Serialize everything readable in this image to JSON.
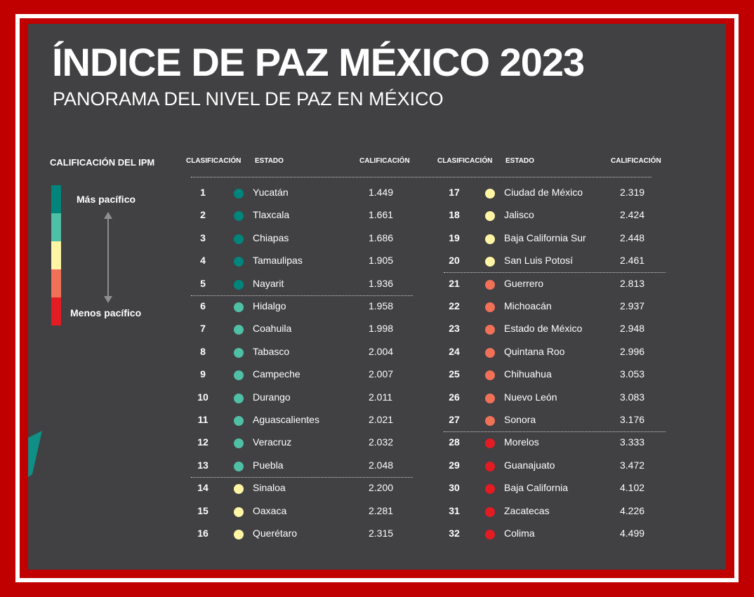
{
  "header": {
    "title": "ÍNDICE DE PAZ MÉXICO 2023",
    "subtitle": "PANORAMA DEL NIVEL DE PAZ EN MÉXICO"
  },
  "legend": {
    "title": "CALIFICACIÓN DEL IPM",
    "most": "Más pacífico",
    "least": "Menos pacífico",
    "colors": [
      "#00857c",
      "#4fbfa5",
      "#fff5a5",
      "#f07158",
      "#e31c23"
    ]
  },
  "columns": {
    "rank": "CLASIFICACIÓN",
    "state": "ESTADO",
    "score": "CALIFICACIÓN"
  },
  "chart_data": {
    "type": "table",
    "title": "ÍNDICE DE PAZ MÉXICO 2023",
    "subtitle": "PANORAMA DEL NIVEL DE PAZ EN MÉXICO",
    "columns": [
      "CLASIFICACIÓN",
      "ESTADO",
      "CALIFICACIÓN"
    ],
    "rows": [
      {
        "rank": "1",
        "state": "Yucatán",
        "score": "1.449",
        "color": "#00857c"
      },
      {
        "rank": "2",
        "state": "Tlaxcala",
        "score": "1.661",
        "color": "#00857c"
      },
      {
        "rank": "3",
        "state": "Chiapas",
        "score": "1.686",
        "color": "#00857c"
      },
      {
        "rank": "4",
        "state": "Tamaulipas",
        "score": "1.905",
        "color": "#00857c"
      },
      {
        "rank": "5",
        "state": "Nayarit",
        "score": "1.936",
        "color": "#00857c"
      },
      {
        "rank": "6",
        "state": "Hidalgo",
        "score": "1.958",
        "color": "#4fbfa5"
      },
      {
        "rank": "7",
        "state": "Coahuila",
        "score": "1.998",
        "color": "#4fbfa5"
      },
      {
        "rank": "8",
        "state": "Tabasco",
        "score": "2.004",
        "color": "#4fbfa5"
      },
      {
        "rank": "9",
        "state": "Campeche",
        "score": "2.007",
        "color": "#4fbfa5"
      },
      {
        "rank": "10",
        "state": "Durango",
        "score": "2.011",
        "color": "#4fbfa5"
      },
      {
        "rank": "11",
        "state": "Aguascalientes",
        "score": "2.021",
        "color": "#4fbfa5"
      },
      {
        "rank": "12",
        "state": "Veracruz",
        "score": "2.032",
        "color": "#4fbfa5"
      },
      {
        "rank": "13",
        "state": "Puebla",
        "score": "2.048",
        "color": "#4fbfa5"
      },
      {
        "rank": "14",
        "state": "Sinaloa",
        "score": "2.200",
        "color": "#fff5a5"
      },
      {
        "rank": "15",
        "state": "Oaxaca",
        "score": "2.281",
        "color": "#fff5a5"
      },
      {
        "rank": "16",
        "state": "Querétaro",
        "score": "2.315",
        "color": "#fff5a5"
      },
      {
        "rank": "17",
        "state": "Ciudad de México",
        "score": "2.319",
        "color": "#fff5a5"
      },
      {
        "rank": "18",
        "state": "Jalisco",
        "score": "2.424",
        "color": "#fff5a5"
      },
      {
        "rank": "19",
        "state": "Baja California Sur",
        "score": "2.448",
        "color": "#fff5a5"
      },
      {
        "rank": "20",
        "state": "San Luis Potosí",
        "score": "2.461",
        "color": "#fff5a5"
      },
      {
        "rank": "21",
        "state": "Guerrero",
        "score": "2.813",
        "color": "#f07158"
      },
      {
        "rank": "22",
        "state": "Michoacán",
        "score": "2.937",
        "color": "#f07158"
      },
      {
        "rank": "23",
        "state": "Estado de México",
        "score": "2.948",
        "color": "#f07158"
      },
      {
        "rank": "24",
        "state": "Quintana Roo",
        "score": "2.996",
        "color": "#f07158"
      },
      {
        "rank": "25",
        "state": "Chihuahua",
        "score": "3.053",
        "color": "#f07158"
      },
      {
        "rank": "26",
        "state": "Nuevo León",
        "score": "3.083",
        "color": "#f07158"
      },
      {
        "rank": "27",
        "state": "Sonora",
        "score": "3.176",
        "color": "#f07158"
      },
      {
        "rank": "28",
        "state": "Morelos",
        "score": "3.333",
        "color": "#e31c23"
      },
      {
        "rank": "29",
        "state": "Guanajuato",
        "score": "3.472",
        "color": "#e31c23"
      },
      {
        "rank": "30",
        "state": "Baja California",
        "score": "4.102",
        "color": "#e31c23"
      },
      {
        "rank": "31",
        "state": "Zacatecas",
        "score": "4.226",
        "color": "#e31c23"
      },
      {
        "rank": "32",
        "state": "Colima",
        "score": "4.499",
        "color": "#e31c23"
      }
    ]
  }
}
